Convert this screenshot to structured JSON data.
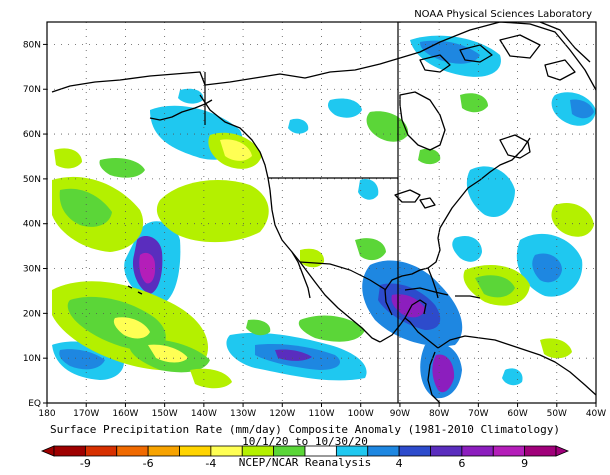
{
  "credit": "NOAA Physical Sciences Laboratory",
  "title_line1": "Surface Precipitation Rate (mm/day) Composite Anomaly (1981-2010 Climatology)",
  "title_line2": "10/1/20 to 10/30/20",
  "title_line3": "NCEP/NCAR Reanalysis",
  "lat_labels": [
    "80N",
    "70N",
    "60N",
    "50N",
    "40N",
    "30N",
    "20N",
    "10N",
    "EQ"
  ],
  "lon_labels": [
    "180",
    "170W",
    "160W",
    "150W",
    "140W",
    "130W",
    "120W",
    "110W",
    "100W",
    "90W",
    "80W",
    "70W",
    "60W",
    "50W",
    "40W"
  ],
  "colorbar": {
    "labels": [
      "-9",
      "-6",
      "-4",
      "4",
      "6",
      "9"
    ],
    "colors": [
      "#9e0000",
      "#d73000",
      "#f06a00",
      "#f7a300",
      "#ffd400",
      "#ffff54",
      "#b4f000",
      "#5bd638",
      "#ffffff",
      "#1fc8f0",
      "#1e87e1",
      "#2d4bcc",
      "#5a2dbe",
      "#8c1ebe",
      "#b41eb9",
      "#a0007a"
    ]
  },
  "chart_data": {
    "type": "heatmap",
    "variable": "Surface Precipitation Rate (mm/day) Composite Anomaly",
    "climatology": "1981-2010",
    "period": "10/1/20 to 10/30/20",
    "source": "NCEP/NCAR Reanalysis",
    "lon_range": [
      -180,
      -40
    ],
    "lat_range": [
      0,
      85
    ],
    "colorbar_ticks": [
      -9,
      -6,
      -4,
      4,
      6,
      9
    ],
    "anomalies": [
      {
        "lon": -156,
        "lat": 29,
        "value": 7
      },
      {
        "lon": -84,
        "lat": 22,
        "value": 7
      },
      {
        "lon": -77,
        "lat": 6,
        "value": 6
      },
      {
        "lon": -51,
        "lat": 30,
        "value": 5
      },
      {
        "lon": -122,
        "lat": 9,
        "value": 5
      },
      {
        "lon": -165,
        "lat": 10,
        "value": 4
      },
      {
        "lon": -147,
        "lat": 42,
        "value": -3
      },
      {
        "lon": -170,
        "lat": 18,
        "value": -3
      },
      {
        "lon": -140,
        "lat": 9,
        "value": -3
      },
      {
        "lon": -112,
        "lat": 37,
        "value": 0
      }
    ]
  }
}
